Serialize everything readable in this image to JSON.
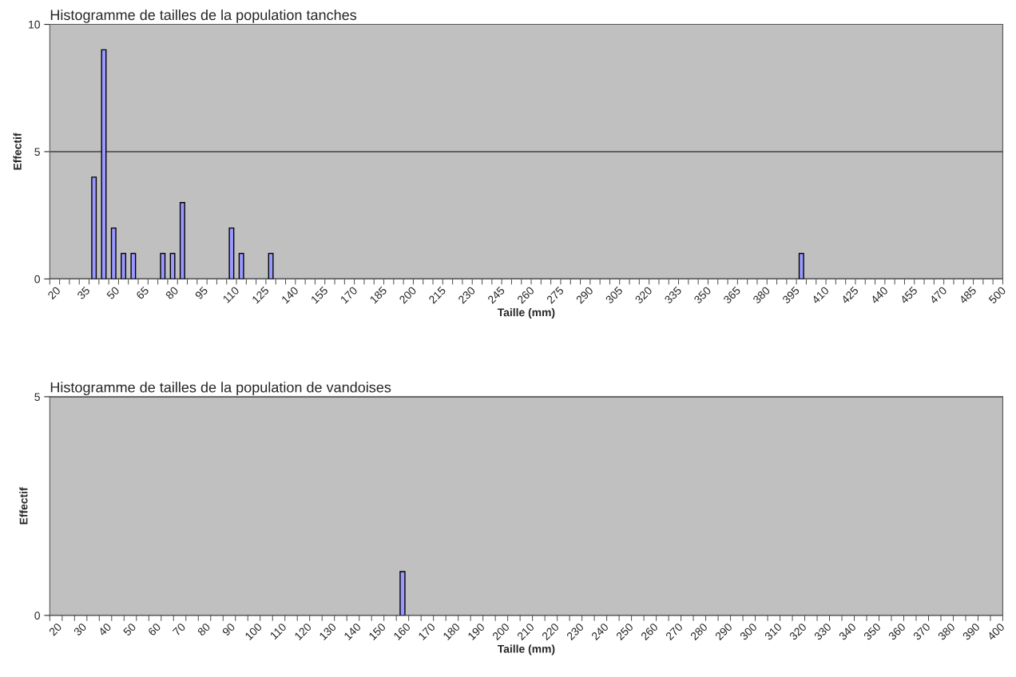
{
  "chart_data": [
    {
      "type": "bar",
      "title": "Histogramme de tailles de la population tanches",
      "xlabel": "Taille (mm)",
      "ylabel": "Effectif",
      "categories": [
        "20",
        null,
        null,
        "35",
        null,
        null,
        "50",
        null,
        null,
        "65",
        null,
        null,
        "80",
        null,
        null,
        "95",
        null,
        null,
        "110",
        null,
        null,
        "125",
        null,
        null,
        "140",
        null,
        null,
        "155",
        null,
        null,
        "170",
        null,
        null,
        "185",
        null,
        null,
        "200",
        null,
        null,
        "215",
        null,
        null,
        "230",
        null,
        null,
        "245",
        null,
        null,
        "260",
        null,
        null,
        "275",
        null,
        null,
        "290",
        null,
        null,
        "305",
        null,
        null,
        "320",
        null,
        null,
        "335",
        null,
        null,
        "350",
        null,
        null,
        "365",
        null,
        null,
        "380",
        null,
        null,
        "395",
        null,
        null,
        "410",
        null,
        null,
        "425",
        null,
        null,
        "440",
        null,
        null,
        "455",
        null,
        null,
        "470",
        null,
        null,
        "485",
        null,
        null,
        "500"
      ],
      "values": [
        0,
        0,
        0,
        0,
        4,
        9,
        2,
        1,
        1,
        0,
        0,
        1,
        1,
        3,
        0,
        0,
        0,
        0,
        2,
        1,
        0,
        0,
        1,
        0,
        0,
        0,
        0,
        0,
        0,
        0,
        0,
        0,
        0,
        0,
        0,
        0,
        0,
        0,
        0,
        0,
        0,
        0,
        0,
        0,
        0,
        0,
        0,
        0,
        0,
        0,
        0,
        0,
        0,
        0,
        0,
        0,
        0,
        0,
        0,
        0,
        0,
        0,
        0,
        0,
        0,
        0,
        0,
        0,
        0,
        0,
        0,
        0,
        0,
        0,
        0,
        0,
        1,
        0,
        0,
        0,
        0,
        0,
        0,
        0,
        0,
        0,
        0,
        0,
        0,
        0,
        0,
        0,
        0,
        0,
        0,
        0,
        0
      ],
      "color": "#9999ff",
      "ylim": [
        0,
        10
      ],
      "yticks": [
        0,
        5,
        10
      ],
      "grid": "y"
    },
    {
      "type": "bar",
      "title": "Histogramme de tailles de la population de vandoises",
      "xlabel": "Taille (mm)",
      "ylabel": "Effectif",
      "categories": [
        "20",
        null,
        "30",
        null,
        "40",
        null,
        "50",
        null,
        "60",
        null,
        "70",
        null,
        "80",
        null,
        "90",
        null,
        "100",
        null,
        "110",
        null,
        "120",
        null,
        "130",
        null,
        "140",
        null,
        "150",
        null,
        "160",
        null,
        "170",
        null,
        "180",
        null,
        "190",
        null,
        "200",
        null,
        "210",
        null,
        "220",
        null,
        "230",
        null,
        "240",
        null,
        "250",
        null,
        "260",
        null,
        "270",
        null,
        "280",
        null,
        "290",
        null,
        "300",
        null,
        "310",
        null,
        "320",
        null,
        "330",
        null,
        "340",
        null,
        "350",
        null,
        "360",
        null,
        "370",
        null,
        "380",
        null,
        "390",
        null,
        "400"
      ],
      "values": [
        0,
        0,
        0,
        0,
        0,
        0,
        0,
        0,
        0,
        0,
        0,
        0,
        0,
        0,
        0,
        0,
        0,
        0,
        0,
        0,
        0,
        0,
        0,
        0,
        0,
        0,
        0,
        0,
        1,
        0,
        0,
        0,
        0,
        0,
        0,
        0,
        0,
        0,
        0,
        0,
        0,
        0,
        0,
        0,
        0,
        0,
        0,
        0,
        0,
        0,
        0,
        0,
        0,
        0,
        0,
        0,
        0,
        0,
        0,
        0,
        0,
        0,
        0,
        0,
        0,
        0,
        0,
        0,
        0,
        0,
        0,
        0,
        0,
        0,
        0,
        0,
        0
      ],
      "color": "#9999ff",
      "ylim": [
        0,
        5
      ],
      "yticks": [
        0,
        5
      ],
      "grid": "y"
    }
  ]
}
